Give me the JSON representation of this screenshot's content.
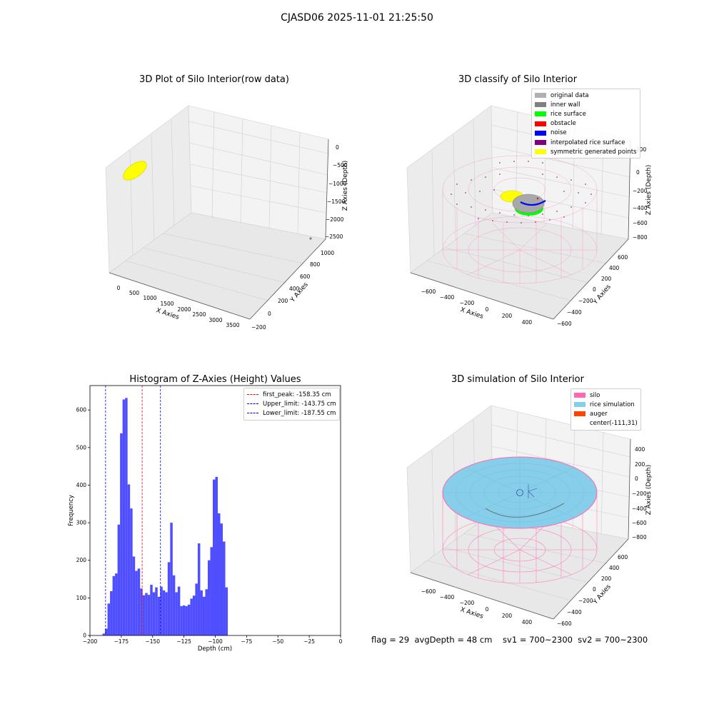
{
  "suptitle": "CJASD06 2025-11-01 21:25:50",
  "footer": "flag = 29  avgDepth = 48 cm    sv1 = 700~2300  sv2 = 700~2300",
  "colors": {
    "hist_bar": "#4f4fff",
    "first_peak": "#ff0000",
    "limits": "#0000ff",
    "silo": "#ff69b4",
    "rice": "#87ceeb",
    "auger": "#ff4500",
    "yellow": "#ffff00",
    "gray": "#b0b0b0",
    "inner_wall": "#808080",
    "rice_surface": "#00ff00",
    "obstacle": "#ff0000",
    "noise": "#0000ff",
    "interp": "#800080"
  },
  "panels": {
    "raw": {
      "title": "3D Plot of Silo Interior(row data)",
      "xlabel": "X Axies",
      "ylabel": "Y Axies",
      "zlabel": "Z Axies (Depth)",
      "xticks": [
        "0",
        "500",
        "1000",
        "1500",
        "2000",
        "2500",
        "3000",
        "3500"
      ],
      "yticks": [
        "−200",
        "0",
        "200",
        "400",
        "600",
        "800",
        "1000"
      ],
      "zticks": [
        "0",
        "−500",
        "−1000",
        "−1500",
        "−2000",
        "−2500"
      ]
    },
    "classify": {
      "title": "3D classify of Silo Interior",
      "xlabel": "X Axies",
      "ylabel": "Y Axies",
      "zlabel": "Z Axies (Depth)",
      "xticks": [
        "−600",
        "−400",
        "−200",
        "0",
        "200",
        "400"
      ],
      "yticks": [
        "−600",
        "−400",
        "−200",
        "0",
        "200",
        "400",
        "600"
      ],
      "zticks": [
        "200",
        "0",
        "−200",
        "−400",
        "−600",
        "−800"
      ],
      "legend": [
        {
          "label": "original data",
          "color": "#b0b0b0"
        },
        {
          "label": "inner wall",
          "color": "#808080"
        },
        {
          "label": "rice surface",
          "color": "#00ff00"
        },
        {
          "label": "obstacle",
          "color": "#ff0000"
        },
        {
          "label": "noise",
          "color": "#0000ff"
        },
        {
          "label": "interpolated rice surface",
          "color": "#800080"
        },
        {
          "label": "symmetric generated points",
          "color": "#ffff00"
        }
      ]
    },
    "simulation": {
      "title": "3D simulation of Silo Interior",
      "xlabel": "X Axies",
      "ylabel": "Y Axies",
      "zlabel": "Z Axies (Depth)",
      "xticks": [
        "−600",
        "−400",
        "−200",
        "0",
        "200",
        "400"
      ],
      "yticks": [
        "−600",
        "−400",
        "−200",
        "0",
        "200",
        "400",
        "600"
      ],
      "zticks": [
        "400",
        "200",
        "0",
        "−200",
        "−400",
        "−600",
        "−800"
      ],
      "legend": [
        {
          "label": "silo",
          "color": "#ff69b4"
        },
        {
          "label": "rice simulation",
          "color": "#87ceeb"
        },
        {
          "label": "auger",
          "color": "#ff4500"
        },
        {
          "label": "center(-111,31)",
          "color": ""
        }
      ]
    }
  },
  "chart_data": {
    "type": "bar",
    "title": "Histogram of Z-Axies (Height) Values",
    "xlabel": "Depth (cm)",
    "ylabel": "Frequency",
    "xlim": [
      -200,
      0
    ],
    "ylim": [
      0,
      665
    ],
    "xticks": [
      -200,
      -175,
      -150,
      -125,
      -100,
      -75,
      -50,
      -25,
      0
    ],
    "yticks": [
      0,
      100,
      200,
      300,
      400,
      500,
      600
    ],
    "bin_start": -190,
    "bin_width": 2,
    "values": [
      5,
      18,
      85,
      118,
      158,
      165,
      295,
      538,
      628,
      632,
      402,
      338,
      210,
      172,
      178,
      125,
      107,
      113,
      108,
      135,
      115,
      128,
      103,
      130,
      120,
      115,
      195,
      300,
      160,
      115,
      130,
      78,
      80,
      78,
      82,
      98,
      106,
      138,
      245,
      120,
      103,
      123,
      200,
      235,
      415,
      422,
      325,
      298,
      250,
      128
    ],
    "lines": [
      {
        "name": "first_peak",
        "value": -158.35,
        "label": "first_peak: -158.35 cm",
        "color": "#ff0000"
      },
      {
        "name": "upper_limit",
        "value": -143.75,
        "label": "Upper_limit: -143.75 cm",
        "color": "#0000ff"
      },
      {
        "name": "lower_limit",
        "value": -187.55,
        "label": "Lower_limit: -187.55 cm",
        "color": "#0000ff"
      }
    ],
    "legend_position": "upper right",
    "grid": false
  }
}
